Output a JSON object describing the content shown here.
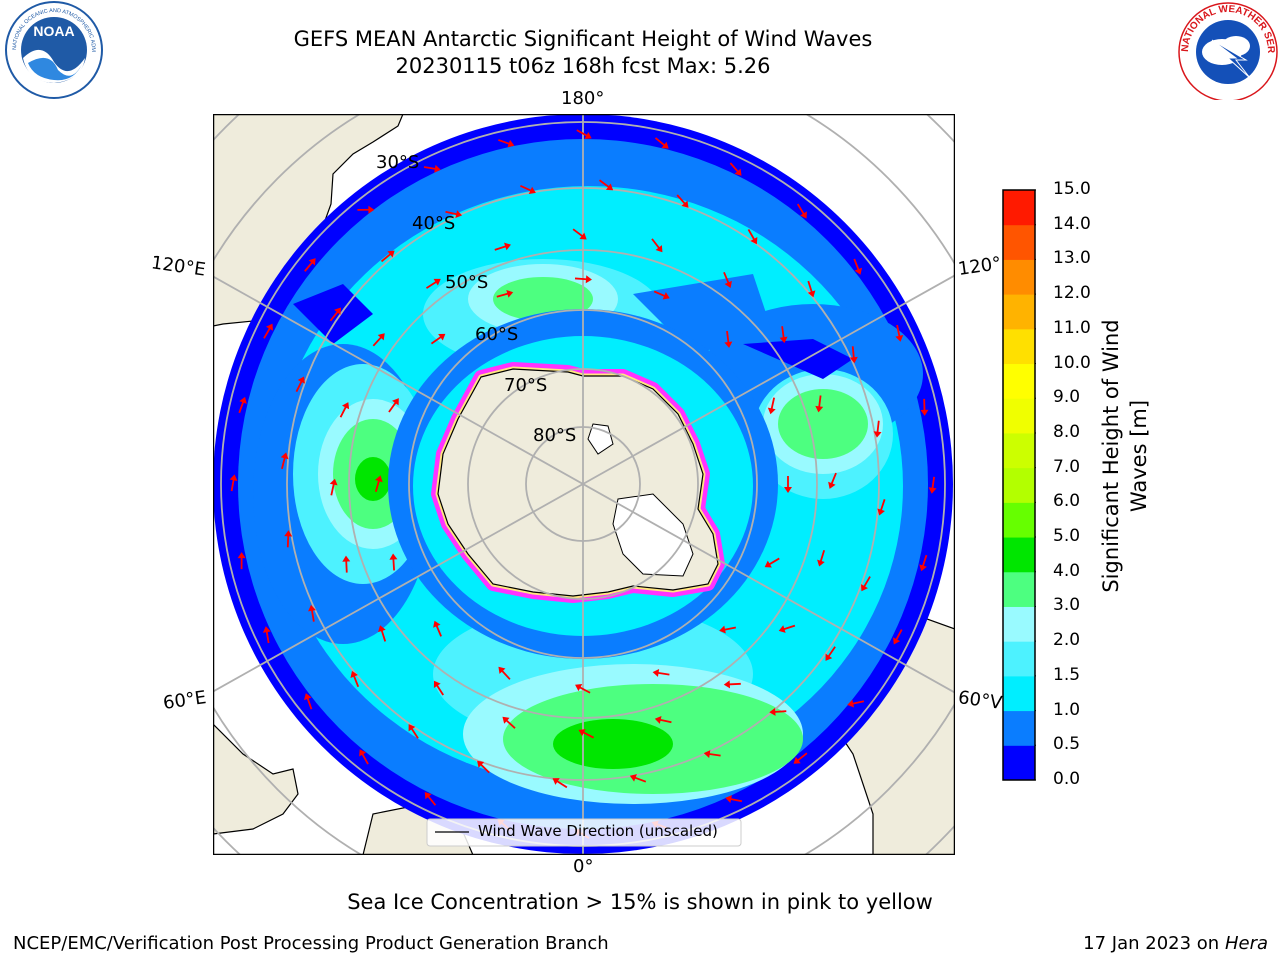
{
  "title": {
    "line1": "GEFS MEAN Antarctic Significant Height of Wind Waves",
    "line2": "20230115 t06z 168h fcst   Max: 5.26"
  },
  "logos": {
    "noaa": {
      "text": "NOAA",
      "ring_text": "NATIONAL OCEANIC AND ATMOSPHERIC ADMINISTRATION",
      "bottom_text": "U.S. DEPARTMENT OF COMMERCE",
      "color": "#1f5aa6"
    },
    "nws": {
      "ring_text": "NATIONAL WEATHER SERVICE",
      "color": "#d9161b"
    }
  },
  "map": {
    "longitude_labels": {
      "top": "180°",
      "bottom": "0°",
      "left_upper": "120°E",
      "left_lower": "60°E",
      "right_upper": "120°",
      "right_lower": "60°V"
    },
    "latitude_labels": [
      "30°S",
      "40°S",
      "50°S",
      "60°S",
      "70°S",
      "80°S"
    ],
    "legend": "Wind Wave Direction (unscaled)",
    "arrow_color": "#ff0000",
    "land_color": "#efecdc",
    "ice_colors": [
      "#ff33ff",
      "#ffffff",
      "#ffe680"
    ]
  },
  "colorbar": {
    "title_line1": "Significant Height of Wind",
    "title_line2": "Waves [m]",
    "ticks": [
      "0.0",
      "0.5",
      "1.0",
      "1.5",
      "2.0",
      "3.0",
      "4.0",
      "5.0",
      "6.0",
      "7.0",
      "8.0",
      "9.0",
      "10.0",
      "11.0",
      "12.0",
      "13.0",
      "14.0",
      "15.0"
    ],
    "colors": [
      "#0000ff",
      "#0a7dff",
      "#00eeff",
      "#4df2ff",
      "#99faff",
      "#4dff80",
      "#00e600",
      "#66ff00",
      "#b3ff00",
      "#ccff00",
      "#f0ff00",
      "#ffff00",
      "#ffe000",
      "#ffb300",
      "#ff8c00",
      "#ff5500",
      "#ff1a00"
    ]
  },
  "footer": {
    "note": "Sea Ice Concentration > 15% is shown in pink to yellow",
    "left": "NCEP/EMC/Verification Post Processing Product Generation Branch",
    "right_date": "17 Jan 2023 on ",
    "right_host": "Hera"
  }
}
